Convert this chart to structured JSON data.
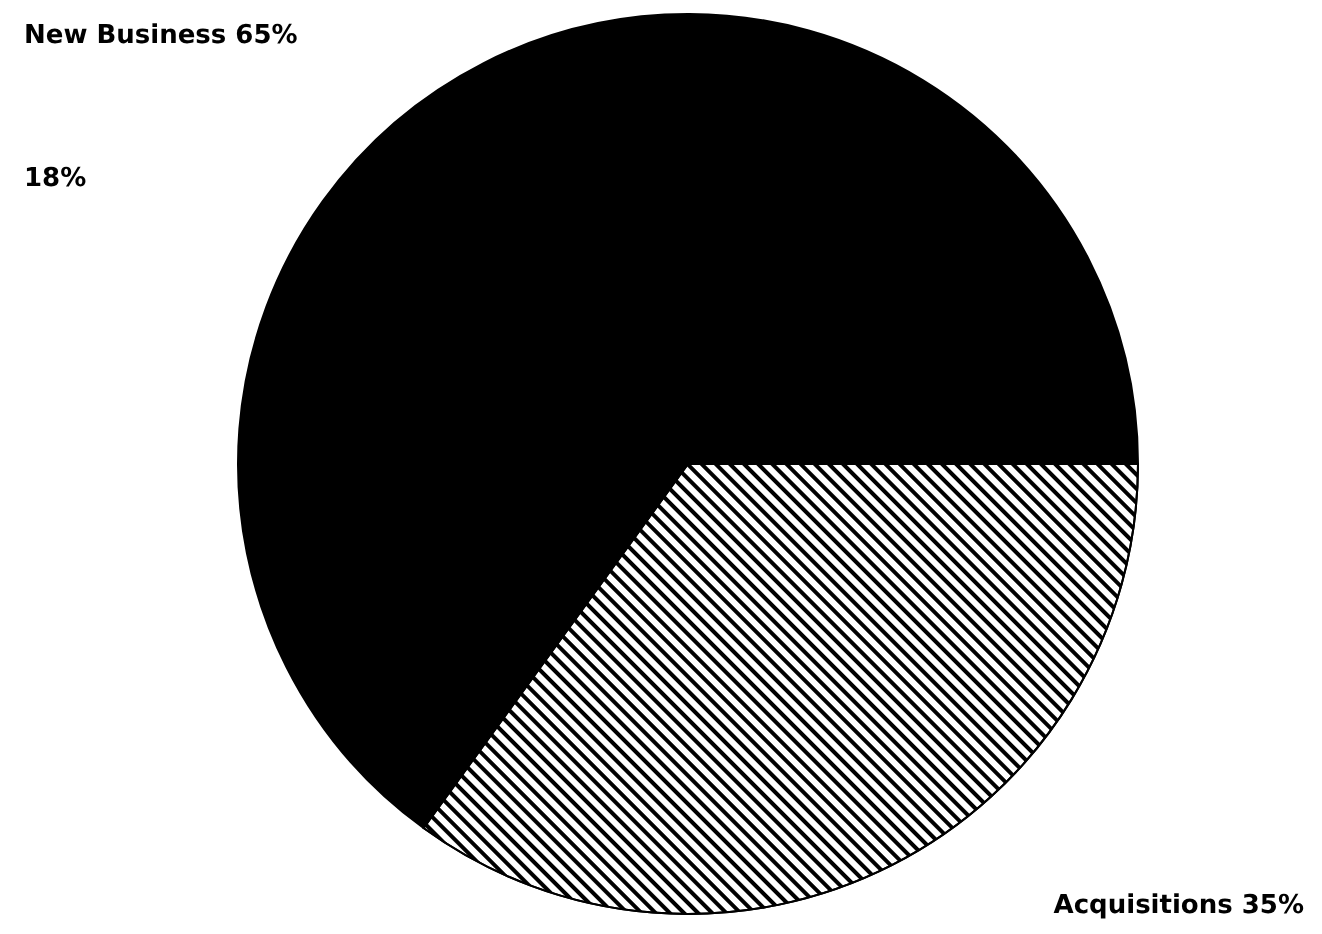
{
  "chart_data": {
    "type": "pie",
    "categories": [
      "New Business",
      "Acquisitions"
    ],
    "values": [
      65,
      35
    ],
    "colors": [
      "#000000",
      "#ffffff"
    ],
    "value_labels": [
      "65%",
      "35%"
    ],
    "annotations": [
      "18%"
    ]
  }
}
